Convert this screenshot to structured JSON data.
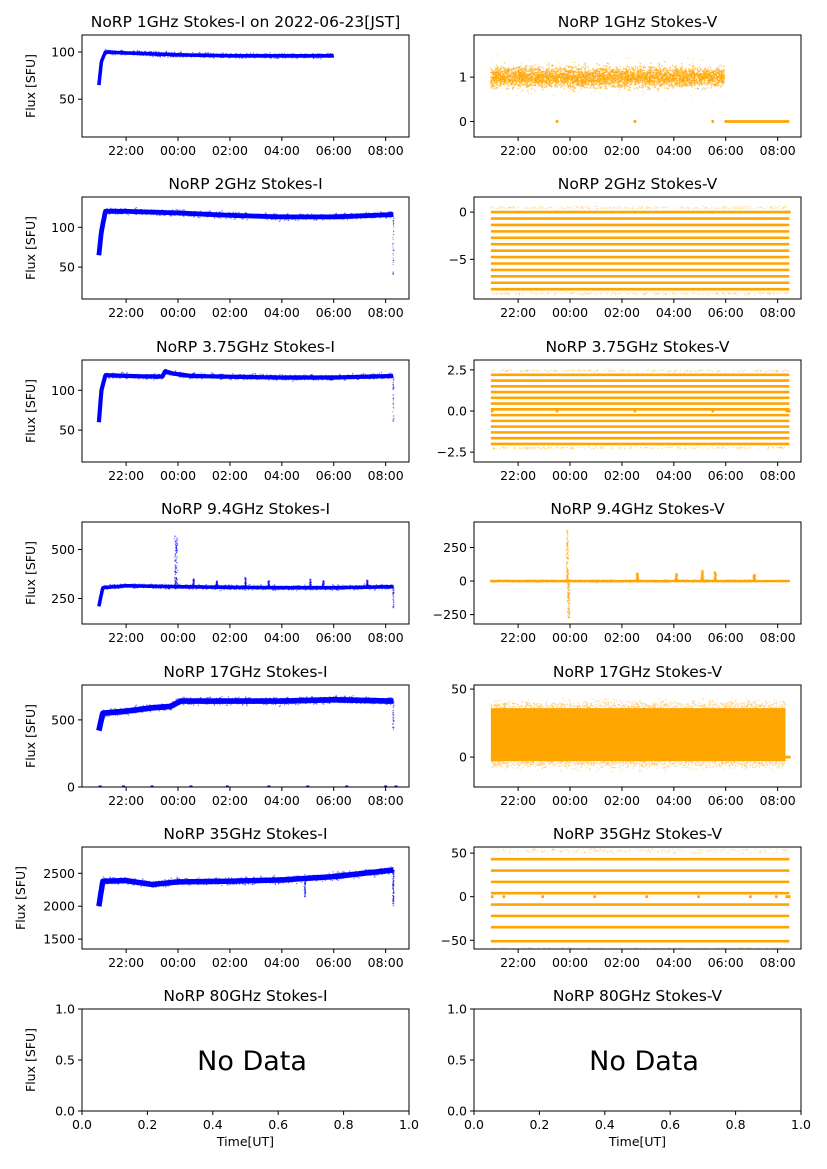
{
  "figure": {
    "xlabel": "Time[UT]",
    "ylabel": "Flux [SFU]",
    "colors": {
      "stokes_i": "#0000ff",
      "stokes_v": "#ffa500"
    }
  },
  "chart_data": [
    {
      "id": "p1i",
      "type": "scatter",
      "title": "NoRP 1GHz Stokes-I on 2022-06-23[JST]",
      "ylabel": "Flux [SFU]",
      "xlabel": "",
      "color": "#0000ff",
      "xlim": [
        20.3,
        32.9
      ],
      "ylim": [
        10,
        118
      ],
      "xticks": [
        22,
        24,
        26,
        28,
        30,
        32
      ],
      "xticklabels": [
        "22:00",
        "00:00",
        "02:00",
        "04:00",
        "06:00",
        "08:00"
      ],
      "yticks": [
        50,
        100
      ],
      "yticklabels": [
        "50",
        "100"
      ],
      "trace": {
        "start": 20.95,
        "end": 30.0,
        "knots": [
          [
            20.95,
            65
          ],
          [
            21.05,
            90
          ],
          [
            21.2,
            100
          ],
          [
            22,
            99
          ],
          [
            24,
            97
          ],
          [
            26,
            96
          ],
          [
            28,
            96
          ],
          [
            30,
            96
          ]
        ],
        "band": 2.5,
        "low_outlier": 0
      }
    },
    {
      "id": "p1v",
      "type": "scatter",
      "title": "NoRP 1GHz Stokes-V",
      "ylabel": "",
      "xlabel": "",
      "color": "#ffa500",
      "xlim": [
        20.3,
        32.9
      ],
      "ylim": [
        -0.35,
        1.95
      ],
      "xticks": [
        22,
        24,
        26,
        28,
        30,
        32
      ],
      "xticklabels": [
        "22:00",
        "00:00",
        "02:00",
        "04:00",
        "06:00",
        "08:00"
      ],
      "yticks": [
        0,
        1
      ],
      "yticklabels": [
        "0",
        "1"
      ],
      "noise": {
        "start": 20.95,
        "end": 29.95,
        "center": 1.0,
        "spread": 0.35
      },
      "segments": [
        [
          23.45,
          23.55,
          0.0
        ],
        [
          26.45,
          26.55,
          0.0
        ],
        [
          29.45,
          29.55,
          0.0
        ],
        [
          29.95,
          32.45,
          0.0
        ]
      ]
    },
    {
      "id": "p2i",
      "type": "scatter",
      "title": "NoRP 2GHz Stokes-I",
      "ylabel": "Flux [SFU]",
      "xlabel": "",
      "color": "#0000ff",
      "xlim": [
        20.3,
        32.9
      ],
      "ylim": [
        10,
        138
      ],
      "xticks": [
        22,
        24,
        26,
        28,
        30,
        32
      ],
      "xticklabels": [
        "22:00",
        "00:00",
        "02:00",
        "04:00",
        "06:00",
        "08:00"
      ],
      "yticks": [
        50,
        100
      ],
      "yticklabels": [
        "50",
        "100"
      ],
      "trace": {
        "start": 20.95,
        "end": 32.3,
        "knots": [
          [
            20.95,
            65
          ],
          [
            21.05,
            95
          ],
          [
            21.2,
            120
          ],
          [
            22,
            120
          ],
          [
            24,
            118
          ],
          [
            26,
            115
          ],
          [
            28,
            113
          ],
          [
            30,
            113
          ],
          [
            32.3,
            116
          ]
        ],
        "band": 4,
        "low_outlier": 40
      }
    },
    {
      "id": "p2v",
      "type": "scatter",
      "title": "NoRP 2GHz Stokes-V",
      "ylabel": "",
      "xlabel": "",
      "color": "#ffa500",
      "xlim": [
        20.3,
        32.9
      ],
      "ylim": [
        -9.2,
        1.6
      ],
      "xticks": [
        22,
        24,
        26,
        28,
        30,
        32
      ],
      "xticklabels": [
        "22:00",
        "00:00",
        "02:00",
        "04:00",
        "06:00",
        "08:00"
      ],
      "yticks": [
        0,
        -5
      ],
      "yticklabels": [
        "0",
        "−5"
      ],
      "levels": {
        "start": 20.95,
        "end": 32.45,
        "values": [
          0,
          -0.68,
          -1.36,
          -2.04,
          -2.72,
          -3.4,
          -4.08,
          -4.76,
          -5.44,
          -6.12,
          -6.8,
          -7.48,
          -8.16
        ]
      },
      "segments": [
        [
          23.45,
          23.55,
          0.0
        ],
        [
          26.45,
          26.55,
          0.0
        ],
        [
          29.45,
          29.55,
          0.0
        ],
        [
          32.3,
          32.5,
          0.0
        ]
      ]
    },
    {
      "id": "p3i",
      "type": "scatter",
      "title": "NoRP 3.75GHz Stokes-I",
      "ylabel": "Flux [SFU]",
      "xlabel": "",
      "color": "#0000ff",
      "xlim": [
        20.3,
        32.9
      ],
      "ylim": [
        10,
        138
      ],
      "xticks": [
        22,
        24,
        26,
        28,
        30,
        32
      ],
      "xticklabels": [
        "22:00",
        "00:00",
        "02:00",
        "04:00",
        "06:00",
        "08:00"
      ],
      "yticks": [
        50,
        100
      ],
      "yticklabels": [
        "50",
        "100"
      ],
      "trace": {
        "start": 20.95,
        "end": 32.3,
        "knots": [
          [
            20.95,
            60
          ],
          [
            21.05,
            100
          ],
          [
            21.2,
            119
          ],
          [
            22,
            118
          ],
          [
            23.4,
            117
          ],
          [
            23.5,
            124
          ],
          [
            23.8,
            121
          ],
          [
            24.5,
            118
          ],
          [
            26,
            117
          ],
          [
            28,
            116
          ],
          [
            30,
            116
          ],
          [
            32.3,
            118
          ]
        ],
        "band": 3.5,
        "low_outlier": 60
      }
    },
    {
      "id": "p3v",
      "type": "scatter",
      "title": "NoRP 3.75GHz Stokes-V",
      "ylabel": "",
      "xlabel": "",
      "color": "#ffa500",
      "xlim": [
        20.3,
        32.9
      ],
      "ylim": [
        -3.1,
        3.1
      ],
      "xticks": [
        22,
        24,
        26,
        28,
        30,
        32
      ],
      "xticklabels": [
        "22:00",
        "00:00",
        "02:00",
        "04:00",
        "06:00",
        "08:00"
      ],
      "yticks": [
        2.5,
        0,
        -2.5
      ],
      "yticklabels": [
        "2.5",
        "0.0",
        "−2.5"
      ],
      "levels": {
        "start": 20.95,
        "end": 32.45,
        "values": [
          2.2,
          1.85,
          1.5,
          1.15,
          0.8,
          0.45,
          0.1,
          -0.25,
          -0.6,
          -0.95,
          -1.3,
          -1.65,
          -2.0
        ]
      },
      "segments": [
        [
          20.95,
          21.05,
          0.0
        ],
        [
          23.45,
          23.55,
          0.0
        ],
        [
          26.45,
          26.55,
          0.0
        ],
        [
          29.45,
          29.55,
          0.0
        ],
        [
          32.3,
          32.5,
          0.0
        ]
      ]
    },
    {
      "id": "p4i",
      "type": "scatter",
      "title": "NoRP 9.4GHz Stokes-I",
      "ylabel": "Flux [SFU]",
      "xlabel": "",
      "color": "#0000ff",
      "xlim": [
        20.3,
        32.9
      ],
      "ylim": [
        120,
        640
      ],
      "xticks": [
        22,
        24,
        26,
        28,
        30,
        32
      ],
      "xticklabels": [
        "22:00",
        "00:00",
        "02:00",
        "04:00",
        "06:00",
        "08:00"
      ],
      "yticks": [
        250,
        500
      ],
      "yticklabels": [
        "250",
        "500"
      ],
      "trace": {
        "start": 20.95,
        "end": 32.3,
        "knots": [
          [
            20.95,
            210
          ],
          [
            21.1,
            305
          ],
          [
            22,
            315
          ],
          [
            24,
            310
          ],
          [
            26,
            307
          ],
          [
            28,
            305
          ],
          [
            30,
            305
          ],
          [
            32.3,
            310
          ]
        ],
        "band": 12,
        "low_outlier": 200,
        "spikes": [
          [
            23.9,
            580
          ],
          [
            23.95,
            560
          ],
          [
            24.6,
            350
          ],
          [
            25.5,
            340
          ],
          [
            26.6,
            360
          ],
          [
            27.5,
            340
          ],
          [
            29.1,
            350
          ],
          [
            29.6,
            340
          ],
          [
            31.3,
            345
          ]
        ]
      }
    },
    {
      "id": "p4v",
      "type": "scatter",
      "title": "NoRP 9.4GHz Stokes-V",
      "ylabel": "",
      "xlabel": "",
      "color": "#ffa500",
      "xlim": [
        20.3,
        32.9
      ],
      "ylim": [
        -320,
        440
      ],
      "xticks": [
        22,
        24,
        26,
        28,
        30,
        32
      ],
      "xticklabels": [
        "22:00",
        "00:00",
        "02:00",
        "04:00",
        "06:00",
        "08:00"
      ],
      "yticks": [
        250,
        0,
        -250
      ],
      "yticklabels": [
        "250",
        "0",
        "−250"
      ],
      "noise": {
        "start": 20.95,
        "end": 32.45,
        "center": 0,
        "spread": 8
      },
      "bursts": [
        [
          23.9,
          380
        ],
        [
          23.95,
          -280
        ],
        [
          26.6,
          60
        ],
        [
          28.1,
          55
        ],
        [
          29.1,
          80
        ],
        [
          29.6,
          70
        ],
        [
          31.1,
          50
        ]
      ]
    },
    {
      "id": "p5i",
      "type": "scatter",
      "title": "NoRP 17GHz Stokes-I",
      "ylabel": "Flux [SFU]",
      "xlabel": "",
      "color": "#0000ff",
      "xlim": [
        20.3,
        32.9
      ],
      "ylim": [
        0,
        760
      ],
      "xticks": [
        22,
        24,
        26,
        28,
        30,
        32
      ],
      "xticklabels": [
        "22:00",
        "00:00",
        "02:00",
        "04:00",
        "06:00",
        "08:00"
      ],
      "yticks": [
        0,
        500
      ],
      "yticklabels": [
        "0",
        "500"
      ],
      "trace": {
        "start": 20.95,
        "end": 32.3,
        "knots": [
          [
            20.95,
            420
          ],
          [
            21.1,
            550
          ],
          [
            22,
            565
          ],
          [
            23,
            590
          ],
          [
            23.7,
            600
          ],
          [
            24.1,
            640
          ],
          [
            26,
            640
          ],
          [
            28,
            640
          ],
          [
            30,
            650
          ],
          [
            32.3,
            640
          ]
        ],
        "band": 28,
        "low_outlier": 420,
        "zeros": [
          21.0,
          21.9,
          23.0,
          24.5,
          25.9,
          27.5,
          29.0,
          30.5,
          32.0,
          32.4
        ]
      }
    },
    {
      "id": "p5v",
      "type": "scatter",
      "title": "NoRP 17GHz Stokes-V",
      "ylabel": "",
      "xlabel": "",
      "color": "#ffa500",
      "xlim": [
        20.3,
        32.9
      ],
      "ylim": [
        -22,
        53
      ],
      "xticks": [
        22,
        24,
        26,
        28,
        30,
        32
      ],
      "xticklabels": [
        "22:00",
        "00:00",
        "02:00",
        "04:00",
        "06:00",
        "08:00"
      ],
      "yticks": [
        50,
        0
      ],
      "yticklabels": [
        "50",
        "0"
      ],
      "band": {
        "start": 20.95,
        "end": 32.3,
        "low": -3,
        "high": 36
      },
      "segments": [
        [
          20.95,
          21.05,
          0.0
        ],
        [
          32.2,
          32.5,
          0.0
        ]
      ]
    },
    {
      "id": "p6i",
      "type": "scatter",
      "title": "NoRP 35GHz Stokes-I",
      "ylabel": "Flux [SFU]",
      "xlabel": "",
      "color": "#0000ff",
      "xlim": [
        20.3,
        32.9
      ],
      "ylim": [
        1350,
        2900
      ],
      "xticks": [
        22,
        24,
        26,
        28,
        30,
        32
      ],
      "xticklabels": [
        "22:00",
        "00:00",
        "02:00",
        "04:00",
        "06:00",
        "08:00"
      ],
      "yticks": [
        1500,
        2000,
        2500
      ],
      "yticklabels": [
        "1500",
        "2000",
        "2500"
      ],
      "trace": {
        "start": 20.95,
        "end": 32.3,
        "knots": [
          [
            20.95,
            2000
          ],
          [
            21.1,
            2380
          ],
          [
            22,
            2390
          ],
          [
            23,
            2330
          ],
          [
            24,
            2370
          ],
          [
            26,
            2380
          ],
          [
            28,
            2400
          ],
          [
            30,
            2450
          ],
          [
            32.3,
            2550
          ]
        ],
        "band": 55,
        "low_outlier": 2000,
        "spikes": [
          [
            28.9,
            2140
          ],
          [
            32.3,
            2030
          ]
        ]
      }
    },
    {
      "id": "p6v",
      "type": "scatter",
      "title": "NoRP 35GHz Stokes-V",
      "ylabel": "",
      "xlabel": "",
      "color": "#ffa500",
      "xlim": [
        20.3,
        32.9
      ],
      "ylim": [
        -60,
        57
      ],
      "xticks": [
        22,
        24,
        26,
        28,
        30,
        32
      ],
      "xticklabels": [
        "22:00",
        "00:00",
        "02:00",
        "04:00",
        "06:00",
        "08:00"
      ],
      "yticks": [
        50,
        0,
        -50
      ],
      "yticklabels": [
        "50",
        "0",
        "−50"
      ],
      "levels": {
        "start": 20.95,
        "end": 32.45,
        "values": [
          43,
          30,
          17,
          4,
          -9,
          -22,
          -35,
          -51
        ]
      },
      "segments": [
        [
          20.95,
          21.05,
          0
        ],
        [
          21.4,
          21.5,
          0
        ],
        [
          22.9,
          23.0,
          0
        ],
        [
          24.9,
          25.0,
          0
        ],
        [
          26.9,
          27.0,
          0
        ],
        [
          28.9,
          29.0,
          0
        ],
        [
          30.9,
          31.0,
          0
        ],
        [
          31.9,
          32.0,
          0
        ],
        [
          32.3,
          32.5,
          0
        ]
      ]
    },
    {
      "id": "p7i",
      "type": "empty",
      "title": "NoRP 80GHz Stokes-I",
      "ylabel": "Flux [SFU]",
      "xlabel": "Time[UT]",
      "annotation": "No Data",
      "xlim": [
        0,
        1
      ],
      "ylim": [
        0,
        1
      ],
      "xticks": [
        0,
        0.2,
        0.4,
        0.6,
        0.8,
        1.0
      ],
      "xticklabels": [
        "0.0",
        "0.2",
        "0.4",
        "0.6",
        "0.8",
        "1.0"
      ],
      "yticks": [
        0,
        0.5,
        1.0
      ],
      "yticklabels": [
        "0.0",
        "0.5",
        "1.0"
      ]
    },
    {
      "id": "p7v",
      "type": "empty",
      "title": "NoRP 80GHz Stokes-V",
      "ylabel": "",
      "xlabel": "Time[UT]",
      "annotation": "No Data",
      "xlim": [
        0,
        1
      ],
      "ylim": [
        0,
        1
      ],
      "xticks": [
        0,
        0.2,
        0.4,
        0.6,
        0.8,
        1.0
      ],
      "xticklabels": [
        "0.0",
        "0.2",
        "0.4",
        "0.6",
        "0.8",
        "1.0"
      ],
      "yticks": [
        0,
        0.5,
        1.0
      ],
      "yticklabels": [
        "0.0",
        "0.5",
        "1.0"
      ]
    }
  ]
}
